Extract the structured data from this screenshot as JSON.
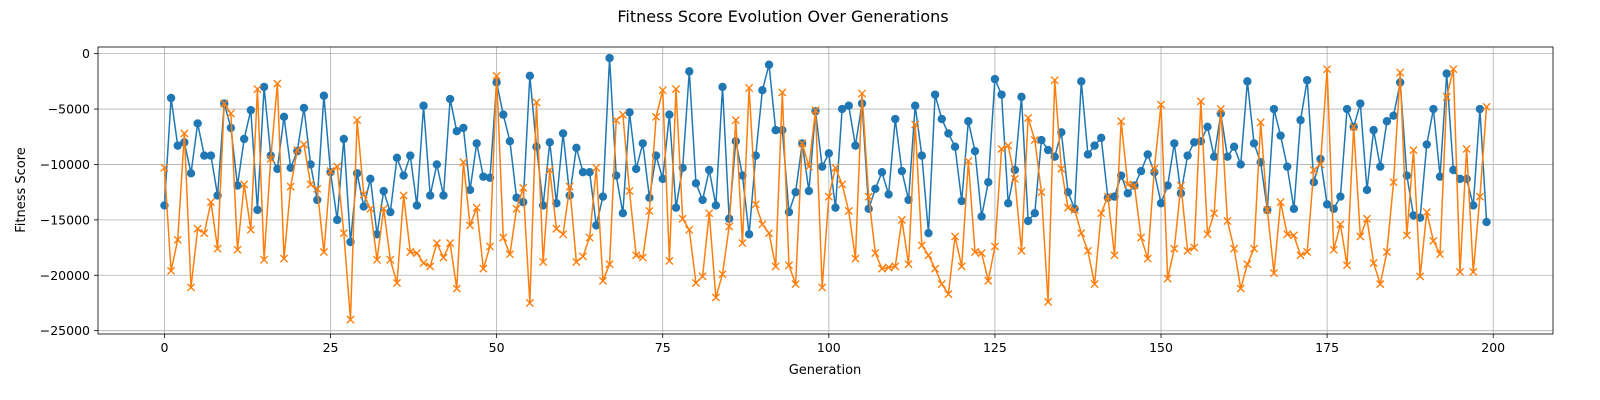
{
  "chart_data": {
    "type": "line",
    "title": "Fitness Score Evolution Over Generations",
    "xlabel": "Generation",
    "ylabel": "Fitness Score",
    "xlim": [
      -10,
      209
    ],
    "ylim": [
      -25300,
      600
    ],
    "xticks": [
      0,
      25,
      50,
      75,
      100,
      125,
      150,
      175,
      200
    ],
    "yticks": [
      -25000,
      -20000,
      -15000,
      -10000,
      -5000,
      0
    ],
    "grid": true,
    "legend": "none",
    "colors": {
      "series_a": "#1f77b4",
      "series_b": "#ff7f0e"
    },
    "x": [
      0,
      1,
      2,
      3,
      4,
      5,
      6,
      7,
      8,
      9,
      10,
      11,
      12,
      13,
      14,
      15,
      16,
      17,
      18,
      19,
      20,
      21,
      22,
      23,
      24,
      25,
      26,
      27,
      28,
      29,
      30,
      31,
      32,
      33,
      34,
      35,
      36,
      37,
      38,
      39,
      40,
      41,
      42,
      43,
      44,
      45,
      46,
      47,
      48,
      49,
      50,
      51,
      52,
      53,
      54,
      55,
      56,
      57,
      58,
      59,
      60,
      61,
      62,
      63,
      64,
      65,
      66,
      67,
      68,
      69,
      70,
      71,
      72,
      73,
      74,
      75,
      76,
      77,
      78,
      79,
      80,
      81,
      82,
      83,
      84,
      85,
      86,
      87,
      88,
      89,
      90,
      91,
      92,
      93,
      94,
      95,
      96,
      97,
      98,
      99,
      100,
      101,
      102,
      103,
      104,
      105,
      106,
      107,
      108,
      109,
      110,
      111,
      112,
      113,
      114,
      115,
      116,
      117,
      118,
      119,
      120,
      121,
      122,
      123,
      124,
      125,
      126,
      127,
      128,
      129,
      130,
      131,
      132,
      133,
      134,
      135,
      136,
      137,
      138,
      139,
      140,
      141,
      142,
      143,
      144,
      145,
      146,
      147,
      148,
      149,
      150,
      151,
      152,
      153,
      154,
      155,
      156,
      157,
      158,
      159,
      160,
      161,
      162,
      163,
      164,
      165,
      166,
      167,
      168,
      169,
      170,
      171,
      172,
      173,
      174,
      175,
      176,
      177,
      178,
      179,
      180,
      181,
      182,
      183,
      184,
      185,
      186,
      187,
      188,
      189,
      190,
      191,
      192,
      193,
      194,
      195,
      196,
      197,
      198,
      199
    ],
    "series": [
      {
        "marker": "circle",
        "values": [
          -13700,
          -4000,
          -8300,
          -8000,
          -10800,
          -6300,
          -9200,
          -9200,
          -12800,
          -4500,
          -6700,
          -11900,
          -7700,
          -5100,
          -14100,
          -3000,
          -9200,
          -10400,
          -5700,
          -10300,
          -8800,
          -4900,
          -10000,
          -13200,
          -3800,
          -10700,
          -15000,
          -7700,
          -17000,
          -10800,
          -13800,
          -11300,
          -16300,
          -12400,
          -14300,
          -9400,
          -11000,
          -9200,
          -13700,
          -4700,
          -12800,
          -10000,
          -12800,
          -4100,
          -7000,
          -6700,
          -12300,
          -8100,
          -11100,
          -11200,
          -2600,
          -5500,
          -7900,
          -13000,
          -13400,
          -2000,
          -8400,
          -13700,
          -8000,
          -13500,
          -7200,
          -12800,
          -8500,
          -10700,
          -10700,
          -15500,
          -12900,
          -400,
          -11000,
          -14400,
          -5300,
          -10400,
          -8100,
          -13000,
          -9200,
          -11300,
          -5500,
          -13900,
          -10300,
          -1600,
          -11700,
          -13200,
          -10500,
          -13700,
          -3000,
          -14900,
          -7900,
          -11000,
          -16300,
          -9200,
          -3300,
          -1000,
          -6900,
          -6900,
          -14300,
          -12500,
          -8100,
          -12400,
          -5200,
          -10200,
          -9000,
          -13900,
          -5000,
          -4700,
          -8300,
          -4500,
          -14000,
          -12200,
          -10700,
          -12700,
          -5900,
          -10600,
          -13200,
          -4700,
          -9200,
          -16200,
          -3700,
          -5900,
          -7200,
          -8400,
          -13300,
          -6100,
          -8800,
          -14700,
          -11600,
          -2300,
          -3700,
          -13500,
          -10500,
          -3900,
          -15100,
          -14400,
          -7800,
          -8700,
          -9300,
          -7100,
          -12500,
          -14000,
          -2500,
          -9100,
          -8300,
          -7600,
          -13000,
          -12900,
          -11000,
          -12600,
          -11900,
          -10600,
          -9100,
          -10700,
          -13500,
          -11900,
          -8100,
          -12600,
          -9200,
          -8000,
          -7900,
          -6600,
          -9300,
          -5400,
          -9300,
          -8400,
          -10000,
          -2500,
          -8100,
          -9800,
          -14100,
          -5000,
          -7400,
          -10200,
          -14000,
          -6000,
          -2400,
          -11600,
          -9500,
          -13600,
          -14000,
          -12900,
          -5000,
          -6600,
          -4500,
          -12300,
          -6900,
          -10200,
          -6100,
          -5600,
          -2600,
          -11000,
          -14600,
          -14800,
          -8200,
          -5000,
          -11100,
          -1800,
          -10500,
          -11300,
          -11300,
          -13700,
          -5000,
          -15200
        ]
      },
      {
        "marker": "x",
        "values": [
          -10300,
          -19600,
          -16800,
          -7200,
          -21100,
          -15800,
          -16200,
          -13400,
          -17600,
          -4500,
          -5400,
          -17700,
          -11800,
          -15900,
          -3200,
          -18600,
          -9500,
          -2700,
          -18500,
          -12000,
          -8700,
          -8200,
          -11800,
          -12200,
          -17900,
          -10600,
          -10200,
          -16200,
          -24000,
          -6000,
          -12700,
          -14000,
          -18600,
          -14000,
          -18600,
          -20700,
          -12800,
          -17900,
          -18000,
          -18900,
          -19200,
          -17100,
          -18400,
          -17100,
          -21200,
          -9800,
          -15500,
          -13900,
          -19400,
          -17400,
          -2000,
          -16600,
          -18100,
          -14000,
          -12100,
          -22500,
          -4400,
          -18800,
          -10500,
          -15800,
          -16300,
          -12000,
          -18800,
          -18300,
          -16600,
          -10300,
          -20500,
          -19000,
          -6000,
          -5500,
          -12400,
          -18200,
          -18400,
          -14200,
          -5700,
          -3300,
          -18700,
          -3200,
          -14900,
          -15900,
          -20700,
          -20100,
          -14400,
          -22000,
          -19900,
          -15600,
          -6000,
          -17100,
          -3100,
          -13600,
          -15400,
          -16200,
          -19200,
          -3500,
          -19100,
          -20800,
          -8100,
          -10200,
          -5100,
          -21100,
          -12900,
          -10300,
          -11800,
          -14200,
          -18500,
          -3600,
          -12900,
          -18000,
          -19400,
          -19300,
          -19200,
          -15000,
          -19000,
          -6400,
          -17300,
          -18200,
          -19400,
          -20800,
          -21700,
          -16500,
          -19200,
          -9700,
          -17900,
          -18000,
          -20500,
          -17400,
          -8600,
          -8300,
          -11300,
          -17800,
          -5800,
          -7800,
          -12500,
          -22400,
          -2400,
          -10400,
          -13900,
          -14100,
          -16200,
          -17800,
          -20800,
          -14400,
          -12900,
          -18200,
          -6100,
          -11800,
          -11900,
          -16600,
          -18500,
          -10400,
          -4600,
          -20300,
          -17600,
          -11900,
          -17800,
          -17500,
          -4300,
          -16300,
          -14400,
          -5000,
          -15100,
          -17600,
          -21200,
          -19000,
          -17600,
          -6200,
          -14100,
          -19800,
          -13400,
          -16300,
          -16400,
          -18200,
          -17900,
          -10500,
          -10000,
          -1400,
          -17700,
          -15400,
          -19100,
          -6600,
          -16500,
          -14900,
          -18900,
          -20800,
          -17900,
          -11600,
          -1700,
          -16400,
          -8700,
          -20100,
          -14300,
          -16900,
          -18100,
          -3900,
          -1400,
          -19700,
          -8600,
          -19700,
          -12900,
          -4800
        ]
      }
    ]
  }
}
